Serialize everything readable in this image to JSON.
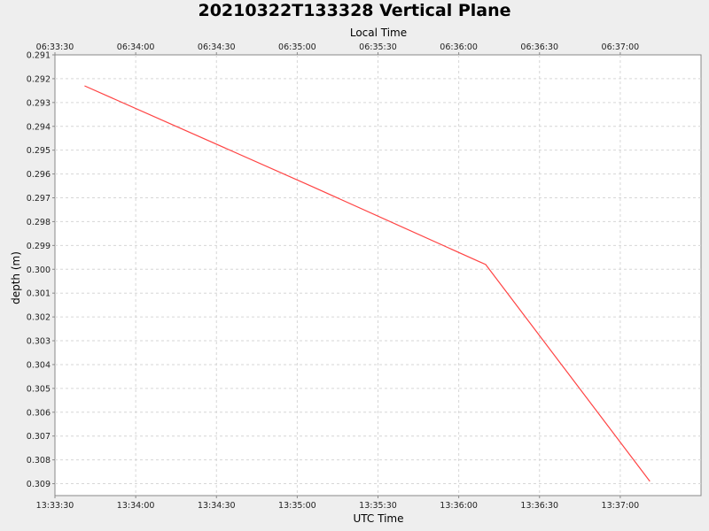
{
  "chart_data": {
    "type": "line",
    "title": "20210322T133328 Vertical Plane",
    "xlabel": "UTC Time",
    "x2label": "Local Time",
    "ylabel": "depth (m)",
    "xlim": [
      "13:33:30",
      "13:37:30"
    ],
    "ylim": [
      0.291,
      0.3095
    ],
    "y_inverted": true,
    "grid": true,
    "legend": "none",
    "line_color": "#ff4444",
    "x_ticks": [
      "13:33:30",
      "13:34:00",
      "13:34:30",
      "13:35:00",
      "13:35:30",
      "13:36:00",
      "13:36:30",
      "13:37:00"
    ],
    "x2_ticks": [
      "06:33:30",
      "06:34:00",
      "06:34:30",
      "06:35:00",
      "06:35:30",
      "06:36:00",
      "06:36:30",
      "06:37:00"
    ],
    "y_ticks": [
      "0.291",
      "0.292",
      "0.293",
      "0.294",
      "0.295",
      "0.296",
      "0.297",
      "0.298",
      "0.299",
      "0.300",
      "0.301",
      "0.302",
      "0.303",
      "0.304",
      "0.305",
      "0.306",
      "0.307",
      "0.308",
      "0.309"
    ],
    "series": [
      {
        "x": [
          "13:33:41",
          "13:35:05",
          "13:36:08",
          "13:36:10",
          "13:37:11"
        ],
        "values": [
          0.2923,
          0.2965,
          0.2997,
          0.2998,
          0.3089
        ]
      }
    ]
  }
}
